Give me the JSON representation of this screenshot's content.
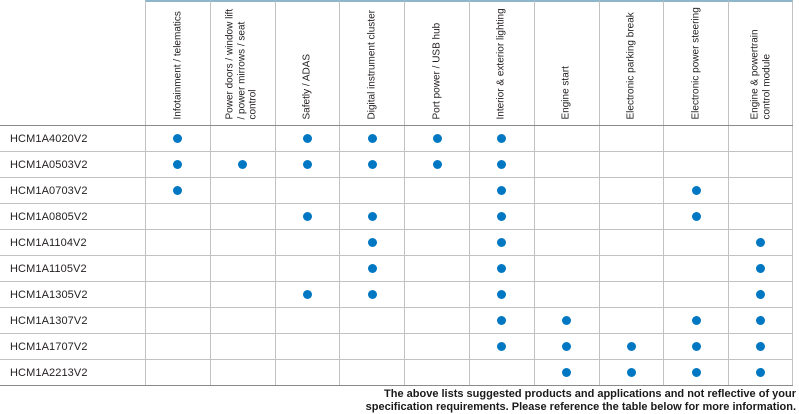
{
  "table": {
    "columns": [
      "Infotainment / telematics",
      "Power doors / window lift\n/ power mirrows / seat\ncontrol",
      "Safetly / ADAS",
      "Digital instrument cluster",
      "Port power / USB hub",
      "Interior & exterior lighting",
      "Engine start",
      "Electronic parking break",
      "Electronic power steering",
      "Engine & powertrain\ncontrol module"
    ],
    "rows": [
      {
        "model": "HCM1A4020V2",
        "applications": [
          1,
          0,
          1,
          1,
          1,
          1,
          0,
          0,
          0,
          0
        ]
      },
      {
        "model": "HCM1A0503V2",
        "applications": [
          1,
          1,
          1,
          1,
          1,
          1,
          0,
          0,
          0,
          0
        ]
      },
      {
        "model": "HCM1A0703V2",
        "applications": [
          1,
          0,
          0,
          0,
          0,
          1,
          0,
          0,
          1,
          0
        ]
      },
      {
        "model": "HCM1A0805V2",
        "applications": [
          0,
          0,
          1,
          1,
          0,
          1,
          0,
          0,
          1,
          0
        ]
      },
      {
        "model": "HCM1A1104V2",
        "applications": [
          0,
          0,
          0,
          1,
          0,
          1,
          0,
          0,
          0,
          1
        ]
      },
      {
        "model": "HCM1A1105V2",
        "applications": [
          0,
          0,
          0,
          1,
          0,
          1,
          0,
          0,
          0,
          1
        ]
      },
      {
        "model": "HCM1A1305V2",
        "applications": [
          0,
          0,
          1,
          1,
          0,
          1,
          0,
          0,
          0,
          1
        ]
      },
      {
        "model": "HCM1A1307V2",
        "applications": [
          0,
          0,
          0,
          0,
          0,
          1,
          1,
          0,
          1,
          1
        ]
      },
      {
        "model": "HCM1A1707V2",
        "applications": [
          0,
          0,
          0,
          0,
          0,
          1,
          1,
          1,
          1,
          1
        ]
      },
      {
        "model": "HCM1A2213V2",
        "applications": [
          0,
          0,
          0,
          0,
          0,
          0,
          1,
          1,
          1,
          1
        ]
      }
    ]
  },
  "footer": {
    "line1": "The above lists suggested products and applications and not reflective of your",
    "line2": "specification requirements. Please reference the table below for more information."
  },
  "colors": {
    "dot": "#0077c2",
    "top_border": "#8eb6ca",
    "grid_line": "#c2c2c2",
    "strong_line": "#8a8a8a",
    "text": "#231f20"
  }
}
